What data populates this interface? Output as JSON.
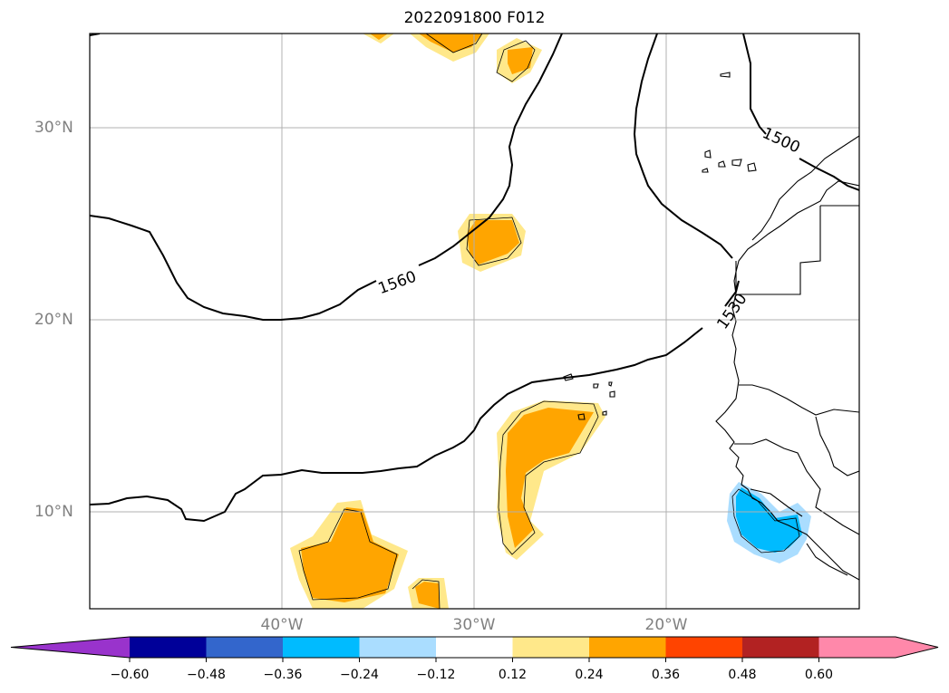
{
  "title": "2022091800 F012",
  "lat_labels": [
    "30°N",
    "20°N",
    "10°N"
  ],
  "lon_labels": [
    "40°W",
    "30°W",
    "20°W"
  ],
  "contour_labels": [
    "1560",
    "1530",
    "1500"
  ],
  "colorbar": {
    "ticks": [
      "−0.60",
      "−0.48",
      "−0.36",
      "−0.24",
      "−0.12",
      "0.12",
      "0.24",
      "0.36",
      "0.48",
      "0.60"
    ],
    "colors": [
      "#9933cc",
      "#000099",
      "#3366cc",
      "#00bbff",
      "#aaddff",
      "#ffffff",
      "#ffe88a",
      "#ffa500",
      "#ff4400",
      "#b22222",
      "#ff88aa",
      "#ff88aa"
    ],
    "extend": "both"
  },
  "colors": {
    "light_yellow": "#ffe88a",
    "orange": "#ffa500",
    "light_blue": "#aaddff",
    "blue": "#00bbff",
    "grid": "#b0b0b0"
  }
}
